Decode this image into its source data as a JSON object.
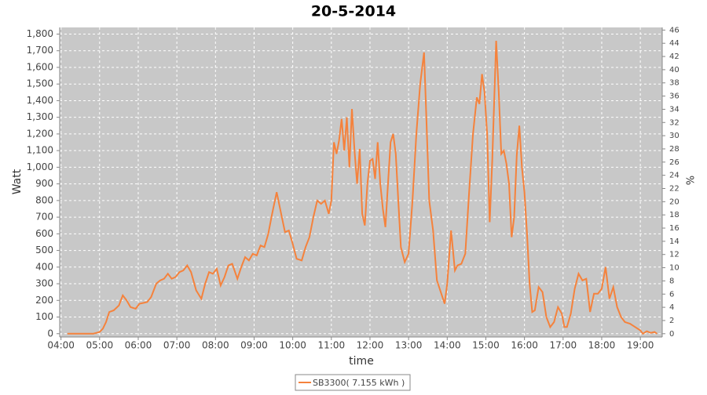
{
  "chart_data": {
    "type": "line",
    "title": "20-5-2014",
    "x_label": "time",
    "y_label": "Watt",
    "y2_label": "%",
    "x": [
      "04:10",
      "04:30",
      "04:50",
      "05:00",
      "05:05",
      "05:10",
      "05:15",
      "05:22",
      "05:30",
      "05:36",
      "05:42",
      "05:48",
      "05:56",
      "06:02",
      "06:08",
      "06:14",
      "06:20",
      "06:28",
      "06:34",
      "06:40",
      "06:46",
      "06:52",
      "06:58",
      "07:04",
      "07:10",
      "07:16",
      "07:22",
      "07:30",
      "07:38",
      "07:44",
      "07:50",
      "07:56",
      "08:02",
      "08:08",
      "08:14",
      "08:20",
      "08:26",
      "08:34",
      "08:40",
      "08:46",
      "08:52",
      "08:58",
      "09:04",
      "09:10",
      "09:16",
      "09:22",
      "09:28",
      "09:35",
      "09:42",
      "09:48",
      "09:54",
      "10:00",
      "10:06",
      "10:14",
      "10:20",
      "10:26",
      "10:32",
      "10:38",
      "10:44",
      "10:50",
      "10:56",
      "11:00",
      "11:04",
      "11:08",
      "11:12",
      "11:16",
      "11:20",
      "11:24",
      "11:28",
      "11:32",
      "11:36",
      "11:40",
      "11:44",
      "11:48",
      "11:52",
      "11:56",
      "12:00",
      "12:04",
      "12:08",
      "12:12",
      "12:16",
      "12:20",
      "12:24",
      "12:28",
      "12:32",
      "12:36",
      "12:40",
      "12:44",
      "12:48",
      "12:54",
      "13:00",
      "13:06",
      "13:12",
      "13:18",
      "13:24",
      "13:28",
      "13:32",
      "13:38",
      "13:44",
      "13:50",
      "13:56",
      "14:00",
      "14:06",
      "14:12",
      "14:16",
      "14:22",
      "14:28",
      "14:34",
      "14:40",
      "14:46",
      "14:50",
      "14:54",
      "14:58",
      "15:02",
      "15:06",
      "15:10",
      "15:16",
      "15:20",
      "15:24",
      "15:28",
      "15:32",
      "15:36",
      "15:40",
      "15:44",
      "15:48",
      "15:52",
      "15:56",
      "16:00",
      "16:04",
      "16:08",
      "16:12",
      "16:16",
      "16:22",
      "16:28",
      "16:34",
      "16:40",
      "16:46",
      "16:52",
      "16:58",
      "17:02",
      "17:06",
      "17:12",
      "17:18",
      "17:24",
      "17:30",
      "17:36",
      "17:42",
      "17:48",
      "17:54",
      "18:00",
      "18:06",
      "18:12",
      "18:18",
      "18:24",
      "18:30",
      "18:36",
      "18:44",
      "18:52",
      "19:00",
      "19:04",
      "19:10",
      "19:16",
      "19:22",
      "19:26"
    ],
    "series": [
      {
        "name": "SB3300( 7.155 kWh )",
        "color": "#f5823c",
        "values": [
          0,
          0,
          0,
          10,
          30,
          70,
          130,
          140,
          170,
          230,
          200,
          160,
          150,
          180,
          185,
          190,
          220,
          300,
          320,
          330,
          360,
          330,
          340,
          370,
          380,
          410,
          370,
          260,
          210,
          300,
          370,
          360,
          390,
          290,
          340,
          410,
          420,
          330,
          400,
          460,
          440,
          480,
          470,
          530,
          520,
          600,
          720,
          850,
          720,
          610,
          620,
          540,
          450,
          440,
          520,
          580,
          700,
          800,
          780,
          800,
          720,
          800,
          1150,
          1080,
          1160,
          1290,
          1100,
          1300,
          1000,
          1350,
          1100,
          900,
          1110,
          720,
          650,
          900,
          1040,
          1050,
          930,
          1150,
          900,
          750,
          640,
          900,
          1150,
          1200,
          1080,
          800,
          520,
          430,
          480,
          800,
          1200,
          1500,
          1690,
          1250,
          800,
          620,
          320,
          250,
          180,
          300,
          620,
          380,
          410,
          420,
          480,
          850,
          1200,
          1420,
          1380,
          1560,
          1450,
          1200,
          670,
          1050,
          1760,
          1450,
          1080,
          1100,
          1020,
          900,
          580,
          700,
          1070,
          1250,
          1000,
          850,
          600,
          300,
          130,
          140,
          280,
          250,
          100,
          40,
          70,
          160,
          120,
          40,
          40,
          120,
          270,
          360,
          320,
          330,
          130,
          240,
          240,
          270,
          400,
          210,
          280,
          160,
          100,
          70,
          60,
          40,
          20,
          0,
          15,
          5,
          10,
          0
        ]
      }
    ],
    "xlim": [
      "03:58",
      "19:34"
    ],
    "xticks": [
      "04:00",
      "05:00",
      "06:00",
      "07:00",
      "08:00",
      "09:00",
      "10:00",
      "11:00",
      "12:00",
      "13:00",
      "14:00",
      "15:00",
      "16:00",
      "17:00",
      "18:00",
      "19:00"
    ],
    "ylim": [
      -20,
      1840
    ],
    "yticks": [
      0,
      100,
      200,
      300,
      400,
      500,
      600,
      700,
      800,
      900,
      {
        "value": 1000,
        "label": "1,000"
      },
      {
        "value": 1100,
        "label": "1,100"
      },
      {
        "value": 1200,
        "label": "1,200"
      },
      {
        "value": 1300,
        "label": "1,300"
      },
      {
        "value": 1400,
        "label": "1,400"
      },
      {
        "value": 1500,
        "label": "1,500"
      },
      {
        "value": 1600,
        "label": "1,600"
      },
      {
        "value": 1700,
        "label": "1,700"
      },
      {
        "value": 1800,
        "label": "1,800"
      }
    ],
    "y2lim": [
      -0.5,
      46.4
    ],
    "y2ticks": [
      0,
      2,
      4,
      6,
      8,
      10,
      12,
      14,
      16,
      18,
      20,
      22,
      24,
      26,
      28,
      30,
      32,
      34,
      36,
      38,
      40,
      42,
      44,
      46
    ],
    "grid": true
  }
}
